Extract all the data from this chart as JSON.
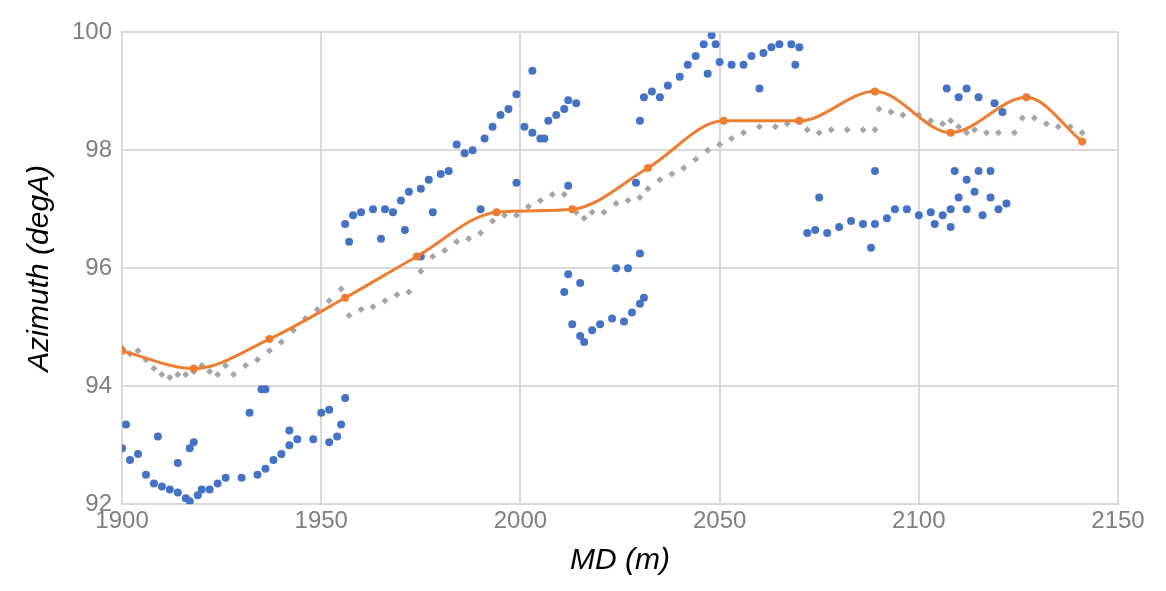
{
  "chart_data": {
    "type": "scatter",
    "xlabel": "MD (m)",
    "ylabel": "Azimuth (degA)",
    "xlim": [
      1900,
      2150
    ],
    "xticks": [
      1900,
      1950,
      2000,
      2050,
      2100,
      2150
    ],
    "ylim": [
      92,
      100
    ],
    "yticks": [
      92,
      94,
      96,
      98,
      100
    ],
    "grid": true,
    "legend": false,
    "series": [
      {
        "type": "scatter",
        "marker": "circle",
        "color": "#4472c4",
        "x": [
          1900,
          1901,
          1902,
          1904,
          1906,
          1908,
          1910,
          1912,
          1914,
          1916,
          1917,
          1919,
          1920,
          1922,
          1924,
          1926,
          1930,
          1934,
          1936,
          1938,
          1940,
          1942,
          1944,
          1948,
          1952,
          1954,
          1955,
          1956,
          1909,
          1914,
          1917,
          1918,
          1932,
          1935,
          1936,
          1942,
          1950,
          1952,
          1956,
          1957,
          1958,
          1960,
          1963,
          1966,
          1968,
          1970,
          1972,
          1975,
          1977,
          1980,
          1982,
          1984,
          1986,
          1988,
          1991,
          1993,
          1995,
          1997,
          1999,
          2001,
          2003,
          2005,
          2007,
          2009,
          2011,
          2012,
          2014,
          1965,
          1971,
          1978,
          1975,
          1990,
          1999,
          2003,
          2006,
          2012,
          2011,
          2013,
          2015,
          2016,
          2018,
          2020,
          2023,
          2026,
          2028,
          2030,
          2031,
          2012,
          2015,
          2024,
          2027,
          2030,
          2030,
          2031,
          2033,
          2035,
          2037,
          2040,
          2042,
          2044,
          2046,
          2048,
          2049,
          2050,
          2053,
          2056,
          2058,
          2061,
          2063,
          2065,
          2068,
          2070,
          2047,
          2060,
          2069,
          2029,
          2072,
          2074,
          2077,
          2080,
          2083,
          2086,
          2089,
          2092,
          2094,
          2097,
          2100,
          2103,
          2106,
          2108,
          2110,
          2112,
          2114,
          2116,
          2118,
          2120,
          2122,
          2075,
          2089,
          2088,
          2104,
          2109,
          2112,
          2115,
          2118,
          2108,
          2107,
          2112,
          2115,
          2110,
          2119,
          2121
        ],
        "values": [
          92.95,
          93.35,
          92.75,
          92.85,
          92.5,
          92.35,
          92.3,
          92.25,
          92.2,
          92.1,
          92.05,
          92.15,
          92.25,
          92.25,
          92.35,
          92.45,
          92.45,
          92.5,
          92.6,
          92.75,
          92.85,
          93,
          93.1,
          93.1,
          93.05,
          93.15,
          93.35,
          93.8,
          93.15,
          92.7,
          92.95,
          93.05,
          93.55,
          93.95,
          93.95,
          93.25,
          93.55,
          93.6,
          96.75,
          96.45,
          96.9,
          96.95,
          97,
          97,
          96.95,
          97.15,
          97.3,
          97.35,
          97.5,
          97.6,
          97.65,
          98.1,
          97.95,
          98,
          98.2,
          98.4,
          98.6,
          98.7,
          98.95,
          98.4,
          98.3,
          98.2,
          98.5,
          98.6,
          98.7,
          98.85,
          98.8,
          96.5,
          96.65,
          96.95,
          96.2,
          97,
          97.45,
          99.35,
          98.2,
          97.4,
          95.6,
          95.05,
          94.85,
          94.75,
          94.95,
          95.05,
          95.15,
          95.1,
          95.25,
          95.4,
          95.5,
          95.9,
          95.75,
          96,
          96,
          96.25,
          98.5,
          98.9,
          99,
          98.9,
          99.1,
          99.25,
          99.45,
          99.6,
          99.8,
          99.95,
          99.8,
          99.5,
          99.45,
          99.45,
          99.6,
          99.65,
          99.75,
          99.8,
          99.8,
          99.75,
          99.3,
          99.05,
          99.45,
          97.45,
          96.6,
          96.65,
          96.6,
          96.7,
          96.8,
          96.75,
          96.75,
          96.85,
          97,
          97,
          96.9,
          96.95,
          96.9,
          97,
          97.2,
          97,
          97.3,
          96.9,
          97.2,
          97,
          97.1,
          97.2,
          97.65,
          96.35,
          96.75,
          97.65,
          97.5,
          97.65,
          97.65,
          96.7,
          99.05,
          99.05,
          98.9,
          98.9,
          98.8,
          98.65
        ]
      },
      {
        "type": "scatter",
        "marker": "diamond",
        "color": "#a5a5a5",
        "x": [
          1900,
          1902,
          1904,
          1906,
          1908,
          1910,
          1912,
          1914,
          1916,
          1918,
          1920,
          1922,
          1924,
          1926,
          1928,
          1931,
          1934,
          1937,
          1940,
          1943,
          1946,
          1949,
          1952,
          1955,
          1957,
          1960,
          1963,
          1966,
          1969,
          1972,
          1975,
          1978,
          1981,
          1984,
          1987,
          1990,
          1993,
          1996,
          1999,
          2002,
          2005,
          2008,
          2011,
          2014,
          2016,
          2018,
          2021,
          2024,
          2027,
          2030,
          2032,
          2035,
          2038,
          2041,
          2044,
          2047,
          2050,
          2053,
          2056,
          2060,
          2064,
          2067,
          2072,
          2075,
          2078,
          2082,
          2086,
          2089,
          2090,
          2093,
          2096,
          2100,
          2103,
          2106,
          2108,
          2110,
          2112,
          2114,
          2117,
          2120,
          2124,
          2126,
          2129,
          2132,
          2135,
          2138,
          2141
        ],
        "values": [
          94.65,
          94.55,
          94.6,
          94.45,
          94.3,
          94.2,
          94.15,
          94.2,
          94.2,
          94.25,
          94.35,
          94.25,
          94.2,
          94.35,
          94.2,
          94.35,
          94.45,
          94.6,
          94.75,
          94.95,
          95.15,
          95.3,
          95.45,
          95.65,
          95.2,
          95.3,
          95.35,
          95.45,
          95.55,
          95.6,
          95.95,
          96.2,
          96.3,
          96.45,
          96.5,
          96.6,
          96.8,
          96.9,
          96.9,
          97.05,
          97.15,
          97.25,
          97.25,
          96.95,
          96.85,
          96.95,
          96.95,
          97.1,
          97.15,
          97.2,
          97.35,
          97.5,
          97.6,
          97.7,
          97.85,
          98,
          98.1,
          98.2,
          98.3,
          98.4,
          98.4,
          98.45,
          98.35,
          98.3,
          98.35,
          98.35,
          98.35,
          98.35,
          98.7,
          98.65,
          98.6,
          98.6,
          98.5,
          98.45,
          98.5,
          98.4,
          98.3,
          98.35,
          98.3,
          98.3,
          98.3,
          98.55,
          98.55,
          98.45,
          98.4,
          98.4,
          98.3
        ]
      },
      {
        "type": "line",
        "marker": "circle",
        "line_style": "solid",
        "color": "#ed7d31",
        "x": [
          1900,
          1918,
          1937,
          1956,
          1974,
          1994,
          2013,
          2032,
          2051,
          2070,
          2089,
          2108,
          2127,
          2141
        ],
        "values": [
          94.6,
          94.3,
          94.8,
          95.5,
          96.2,
          96.95,
          97,
          97.7,
          98.5,
          98.5,
          99,
          98.3,
          98.9,
          98.15
        ]
      }
    ]
  }
}
